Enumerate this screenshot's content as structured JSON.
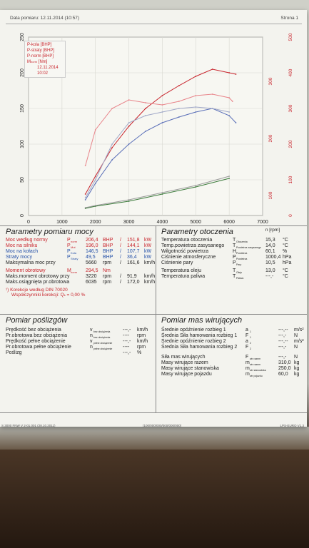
{
  "header": {
    "date_label": "Data pomiaru: 12.11.2014 (10:57)",
    "page_label": "Strona 1"
  },
  "chart_data": {
    "type": "line",
    "x_axis": {
      "ticks": [
        "0",
        "1000",
        "2000",
        "3000",
        "4000",
        "5000",
        "6000",
        "7000"
      ],
      "unit": "n [rpm]",
      "range": [
        0,
        7000
      ]
    },
    "y_left": {
      "ticks": [
        "0",
        "50",
        "100",
        "150",
        "200",
        "250"
      ],
      "range": [
        0,
        250
      ]
    },
    "y_right_outer": {
      "ticks": [
        "0",
        "100",
        "200",
        "300",
        "400",
        "500"
      ],
      "range": [
        0,
        500
      ]
    },
    "y_right_inner": {
      "ticks": [
        "100",
        "200",
        "300"
      ]
    },
    "legend": [
      "P-kola [BHP]",
      "P-straty [BHP]",
      "P-norm [BHP]",
      "M",
      "[Nm]",
      "12.11.2014 10:02"
    ],
    "series": [
      {
        "name": "P-norm [BHP]",
        "color": "#c8242c",
        "x": [
          1700,
          2000,
          2500,
          3000,
          3500,
          4000,
          4500,
          5000,
          5500,
          6000,
          6200
        ],
        "y": [
          30,
          55,
          95,
          125,
          150,
          168,
          182,
          195,
          205,
          200,
          198
        ]
      },
      {
        "name": "M",
        "color": "#e8848a",
        "x": [
          1700,
          2000,
          2500,
          3000,
          3500,
          4000,
          4500,
          5000,
          5500,
          6000,
          6100
        ],
        "y": [
          70,
          120,
          150,
          162,
          158,
          155,
          160,
          168,
          170,
          165,
          160
        ]
      },
      {
        "name": "P-kola [BHP]",
        "color": "#5a6fb8",
        "x": [
          1700,
          2000,
          2500,
          3000,
          3500,
          4000,
          4500,
          5000,
          5500,
          6000,
          6200
        ],
        "y": [
          22,
          45,
          78,
          100,
          118,
          130,
          138,
          145,
          150,
          140,
          130
        ]
      },
      {
        "name": "P-straty [BHP]",
        "color": "#3a7a3a",
        "x": [
          1700,
          2000,
          3000,
          4000,
          5000,
          6000
        ],
        "y": [
          10,
          13,
          20,
          30,
          40,
          52
        ]
      },
      {
        "name": "",
        "color": "#9a9a9a",
        "x": [
          1700,
          2000,
          3000,
          4000,
          5000,
          6000
        ],
        "y": [
          11,
          14,
          22,
          32,
          42,
          55
        ]
      },
      {
        "name": "",
        "color": "#a0a8c8",
        "x": [
          1700,
          2000,
          2500,
          3000,
          3500,
          4000,
          4500,
          5000,
          5500,
          6000
        ],
        "y": [
          25,
          50,
          100,
          130,
          140,
          145,
          150,
          152,
          150,
          145
        ]
      }
    ]
  },
  "params": {
    "title": "Parametry pomiaru mocy",
    "rows": [
      {
        "label": "Moc według normy",
        "sym": "P",
        "sub": "norm",
        "v1": "206,4",
        "u1": "BHP",
        "sep": "/",
        "v2": "151,8",
        "u2": "kW",
        "cls": "red"
      },
      {
        "label": "Moc na silniku",
        "sym": "P",
        "sub": "Mot",
        "v1": "196,0",
        "u1": "BHP",
        "sep": "/",
        "v2": "144,1",
        "u2": "kW",
        "cls": "red"
      },
      {
        "label": "Moc na kołach",
        "sym": "P",
        "sub": "Koła",
        "v1": "146,5",
        "u1": "BHP",
        "sep": "/",
        "v2": "107,7",
        "u2": "kW",
        "cls": "blue"
      },
      {
        "label": "Straty mocy",
        "sym": "P",
        "sub": "Straty",
        "v1": "49,5",
        "u1": "BHP",
        "sep": "/",
        "v2": "36,4",
        "u2": "kW",
        "cls": "blue"
      },
      {
        "label": "Maksymalna moc przy",
        "sym": "",
        "sub": "",
        "v1": "5660",
        "u1": "rpm",
        "sep": "/",
        "v2": "161,6",
        "u2": "km/h",
        "cls": ""
      }
    ],
    "rows2": [
      {
        "label": "Moment obrotowy",
        "sym": "M",
        "sub": "norm",
        "v1": "294,5",
        "u1": "Nm",
        "sep": "",
        "v2": "",
        "u2": "",
        "cls": "red"
      },
      {
        "label": "Maks.moment obrotowy przy",
        "sym": "",
        "sub": "",
        "v1": "3220",
        "u1": "rpm",
        "sep": "/",
        "v2": "91,9",
        "u2": "km/h",
        "cls": ""
      },
      {
        "label": "Maks.osiągnięta pr.obrotowa",
        "sym": "",
        "sub": "",
        "v1": "6035",
        "u1": "rpm",
        "sep": "/",
        "v2": "172,0",
        "u2": "km/h",
        "cls": ""
      }
    ],
    "note1": "¹) Korekcje według DIN 70020",
    "note2": "Współczynniki korekcji:",
    "note2_sym": "Q",
    "note2_sub": "k",
    "note2_val": "= 0,00 %"
  },
  "env": {
    "title": "Parametry otoczenia",
    "rows": [
      {
        "label": "Temperatura otoczenia",
        "sym": "T",
        "sub": "Otoczenia",
        "val": "15,3",
        "unit": "°C"
      },
      {
        "label": "Temp.powietrza zasysanego",
        "sym": "T",
        "sub": "Powietrza zasysanego",
        "val": "14,0",
        "unit": "°C"
      },
      {
        "label": "Wilgotność powietrza",
        "sym": "H",
        "sub": "Powietrza",
        "val": "60,1",
        "unit": "%"
      },
      {
        "label": "Ciśnienie atmosferyczne",
        "sym": "P",
        "sub": "Powietrza",
        "val": "1000,4",
        "unit": "hPa"
      },
      {
        "label": "Ciśnienie pary",
        "sym": "P",
        "sub": "Pary",
        "val": "10,5",
        "unit": "hPa"
      }
    ],
    "rows2": [
      {
        "label": "Temperatura oleju",
        "sym": "T",
        "sub": "Oleju",
        "val": "13,0",
        "unit": "°C"
      },
      {
        "label": "Temperatura paliwa",
        "sym": "T",
        "sub": "Paliwa",
        "val": "---,-",
        "unit": "°C"
      }
    ]
  },
  "slip": {
    "title": "Pomiar poślizgów",
    "rows": [
      {
        "label": "Prędkość bez obciążenia",
        "sym": "v",
        "sub": "bez obciążenia",
        "val": "---,-",
        "unit": "km/h"
      },
      {
        "label": "Pr.obrotowa bez obciążenia",
        "sym": "n",
        "sub": "bez obciążenia",
        "val": "----",
        "unit": "rpm"
      },
      {
        "label": "Prędkość pełne obciążenie",
        "sym": "v",
        "sub": "pełne obciążenie",
        "val": "---,-",
        "unit": "km/h"
      },
      {
        "label": "Pr.obrotowa pełne obciążenie",
        "sym": "n",
        "sub": "pełne obciążenie",
        "val": "----",
        "unit": "rpm"
      },
      {
        "label": "Poślizg",
        "sym": "",
        "sub": "",
        "val": "---,-",
        "unit": "%"
      }
    ]
  },
  "mass": {
    "title": "Pomiar mas wirujących",
    "rows": [
      {
        "label": "Średnie opóźnienie rozbieg 1",
        "sym": "a",
        "sub": "1",
        "val": "---,--",
        "unit": "m/s²"
      },
      {
        "label": "Średnia Siła hamowania rozbieg 1",
        "sym": "F",
        "sub": "1",
        "val": "---,-",
        "unit": "N"
      },
      {
        "label": "Średnie opóźnienie rozbieg 2",
        "sym": "a",
        "sub": "2",
        "val": "---,--",
        "unit": "m/s²"
      },
      {
        "label": "Średnia Siła hamowania rozbieg 2",
        "sym": "F",
        "sub": "2",
        "val": "---,-",
        "unit": "N"
      }
    ],
    "rows2": [
      {
        "label": "Siła mas wirujących",
        "sym": "F",
        "sub": "wir razem",
        "val": "---,-",
        "unit": "N"
      },
      {
        "label": "Masy wirujące razem",
        "sym": "m",
        "sub": "wir razem",
        "val": "310,0",
        "unit": "kg"
      },
      {
        "label": "Masy wirujące stanowiska",
        "sym": "m",
        "sub": "wir stanowiska",
        "val": "250,0",
        "unit": "kg"
      },
      {
        "label": "Masy wirujące pojazdu",
        "sym": "m",
        "sub": "wir pojazdu",
        "val": "60,0",
        "unit": "kg"
      }
    ]
  },
  "footer": {
    "left": "S 3000 FNW V 2-01.001 (28.10.2011)",
    "center": "(100/000/000/000/000/000)",
    "right": "LPS-EURO V1.3"
  }
}
